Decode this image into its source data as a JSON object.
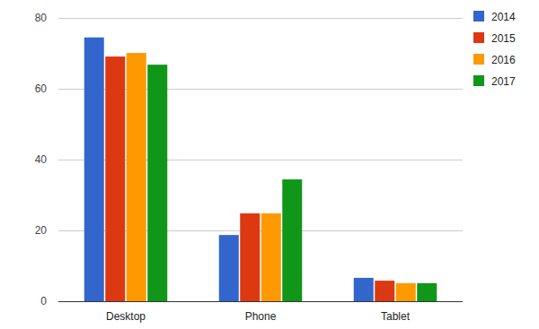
{
  "chart_data": {
    "type": "bar",
    "categories": [
      "Desktop",
      "Phone",
      "Tablet"
    ],
    "series": [
      {
        "name": "2014",
        "color": "#3366cc",
        "values": [
          74.5,
          18.7,
          6.6
        ]
      },
      {
        "name": "2015",
        "color": "#dc3912",
        "values": [
          69.1,
          24.8,
          5.8
        ]
      },
      {
        "name": "2016",
        "color": "#ff9900",
        "values": [
          70.1,
          24.8,
          5.1
        ]
      },
      {
        "name": "2017",
        "color": "#109618",
        "values": [
          66.8,
          34.4,
          5.1
        ]
      }
    ],
    "ylim": [
      0,
      80
    ],
    "yticks": [
      0,
      20,
      40,
      60,
      80
    ],
    "grid": true,
    "legend": "top-right"
  }
}
